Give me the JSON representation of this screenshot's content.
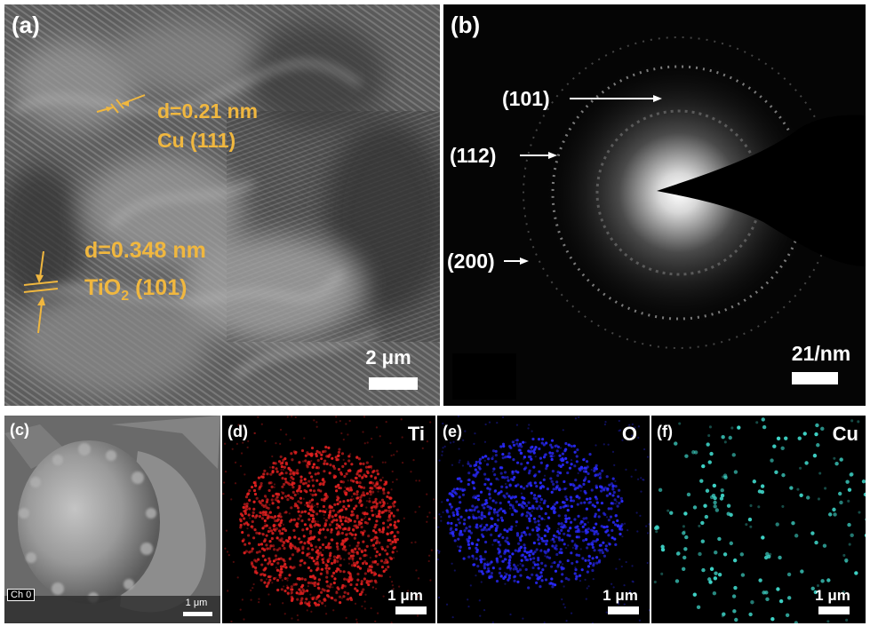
{
  "panel_a": {
    "label": "(a)",
    "annotation_cu_d": "d=0.21 nm",
    "annotation_cu_plane": "Cu (111)",
    "annotation_tio2_d": "d=0.348 nm",
    "annotation_tio2_prefix": "TiO",
    "annotation_tio2_sub": "2",
    "annotation_tio2_plane": " (101)",
    "scale_label": "2 μm",
    "accent_color": "#f0b73f"
  },
  "panel_b": {
    "label": "(b)",
    "ring_101": "(101)",
    "ring_112": "(112)",
    "ring_200": "(200)",
    "scale_label": "21/nm"
  },
  "panel_c": {
    "label": "(c)",
    "channel_tag": "Ch 0",
    "scale_label": "1 μm"
  },
  "panel_d": {
    "label": "(d)",
    "element": "Ti",
    "scale_label": "1 μm",
    "dot_color": "#e02020"
  },
  "panel_e": {
    "label": "(e)",
    "element": "O",
    "scale_label": "1 μm",
    "dot_color": "#2a2aff"
  },
  "panel_f": {
    "label": "(f)",
    "element": "Cu",
    "scale_label": "1 μm",
    "dot_color": "#3fd6c9"
  }
}
